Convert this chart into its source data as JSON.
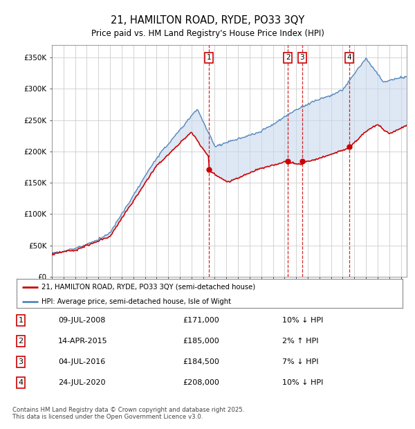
{
  "title": "21, HAMILTON ROAD, RYDE, PO33 3QY",
  "subtitle": "Price paid vs. HM Land Registry's House Price Index (HPI)",
  "legend_property": "21, HAMILTON ROAD, RYDE, PO33 3QY (semi-detached house)",
  "legend_hpi": "HPI: Average price, semi-detached house, Isle of Wight",
  "property_color": "#cc0000",
  "hpi_color": "#5588bb",
  "fill_color": "#c8d8ee",
  "background_color": "#ffffff",
  "grid_color": "#cccccc",
  "transactions": [
    {
      "num": 1,
      "date": "09-JUL-2008",
      "price": 171000,
      "hpi_diff": "10% ↓ HPI",
      "date_decimal": 2008.52
    },
    {
      "num": 2,
      "date": "14-APR-2015",
      "price": 185000,
      "hpi_diff": "2% ↑ HPI",
      "date_decimal": 2015.28
    },
    {
      "num": 3,
      "date": "04-JUL-2016",
      "price": 184500,
      "hpi_diff": "7% ↓ HPI",
      "date_decimal": 2016.51
    },
    {
      "num": 4,
      "date": "24-JUL-2020",
      "price": 208000,
      "hpi_diff": "10% ↓ HPI",
      "date_decimal": 2020.56
    }
  ],
  "footer": "Contains HM Land Registry data © Crown copyright and database right 2025.\nThis data is licensed under the Open Government Licence v3.0.",
  "ylim": [
    0,
    370000
  ],
  "xlim_start": 1995.0,
  "xlim_end": 2025.5,
  "yticks": [
    0,
    50000,
    100000,
    150000,
    200000,
    250000,
    300000,
    350000
  ],
  "ytick_labels": [
    "£0",
    "£50K",
    "£100K",
    "£150K",
    "£200K",
    "£250K",
    "£300K",
    "£350K"
  ]
}
